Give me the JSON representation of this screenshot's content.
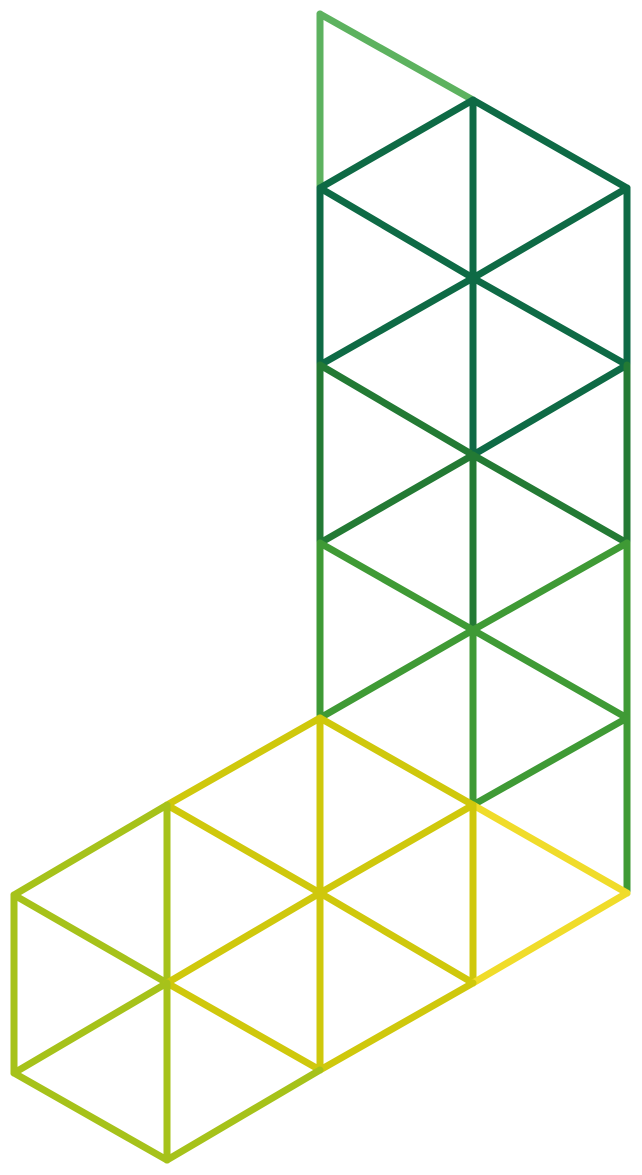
{
  "graphic": {
    "description_label": "",
    "palette": {
      "dark_green": "#0e6a45",
      "forest_green": "#237a34",
      "mid_green": "#3f9a35",
      "light_green": "#5db25f",
      "lime": "#a6c21a",
      "yellow_green": "#cfc80c",
      "yellow": "#f0dc2a"
    }
  }
}
